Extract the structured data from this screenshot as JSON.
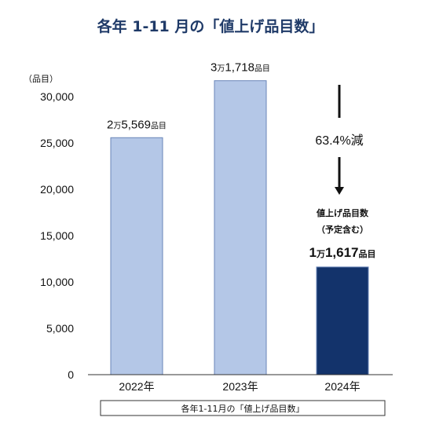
{
  "chart_data": {
    "type": "bar",
    "title": "各年 1-11 月の「値上げ品目数」",
    "ylabel": "（品目）",
    "categories": [
      "2022年",
      "2023年",
      "2024年"
    ],
    "values": [
      25569,
      31718,
      11617
    ],
    "ylim": [
      0,
      30000
    ],
    "yticks": [
      0,
      5000,
      10000,
      15000,
      20000,
      25000,
      30000
    ],
    "ytick_labels": [
      "0",
      "5,000",
      "10,000",
      "15,000",
      "20,000",
      "25,000",
      "30,000"
    ],
    "data_labels": [
      {
        "man": "2",
        "man_unit": "万",
        "rest": "5,569",
        "unit": "品目"
      },
      {
        "man": "3",
        "man_unit": "万",
        "rest": "1,718",
        "unit": "品目"
      },
      {
        "man": "1",
        "man_unit": "万",
        "rest": "1,617",
        "unit": "品目"
      }
    ],
    "bar_colors": [
      "#b4c7e7",
      "#b4c7e7",
      "#13336b"
    ],
    "bar_edge_color": "#6a86b8",
    "annotation": {
      "decrease_text": "63.4%減",
      "note_line1": "値上げ品目数",
      "note_line2": "（予定含む）"
    },
    "footer": "各年1-11月の「値上げ品目数」",
    "grid": false
  }
}
